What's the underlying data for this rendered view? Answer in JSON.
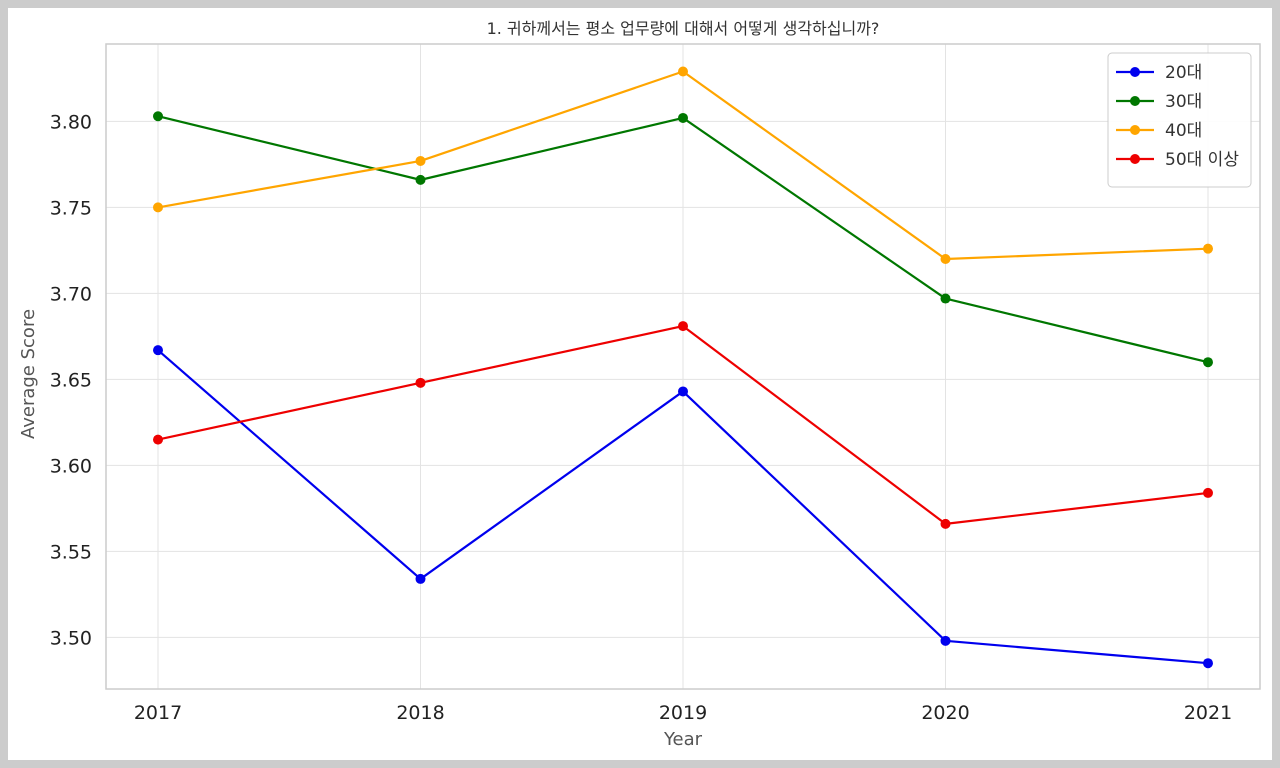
{
  "chart_data": {
    "type": "line",
    "title": "1. 귀하께서는 평소 업무량에 대해서 어떻게 생각하십니까?",
    "xlabel": "Year",
    "ylabel": "Average Score",
    "x": [
      "2017",
      "2018",
      "2019",
      "2020",
      "2021"
    ],
    "ylim": [
      3.47,
      3.845
    ],
    "yticks": [
      "3.50",
      "3.55",
      "3.60",
      "3.65",
      "3.70",
      "3.75",
      "3.80"
    ],
    "grid": true,
    "legend_position": "top-right",
    "series": [
      {
        "name": "20대",
        "color": "#0000ee",
        "values": [
          3.667,
          3.534,
          3.643,
          3.498,
          3.485
        ]
      },
      {
        "name": "30대",
        "color": "#007700",
        "values": [
          3.803,
          3.766,
          3.802,
          3.697,
          3.66
        ]
      },
      {
        "name": "40대",
        "color": "#ffa500",
        "values": [
          3.75,
          3.777,
          3.829,
          3.72,
          3.726
        ]
      },
      {
        "name": "50대 이상",
        "color": "#ee0000",
        "values": [
          3.615,
          3.648,
          3.681,
          3.566,
          3.584
        ]
      }
    ]
  }
}
